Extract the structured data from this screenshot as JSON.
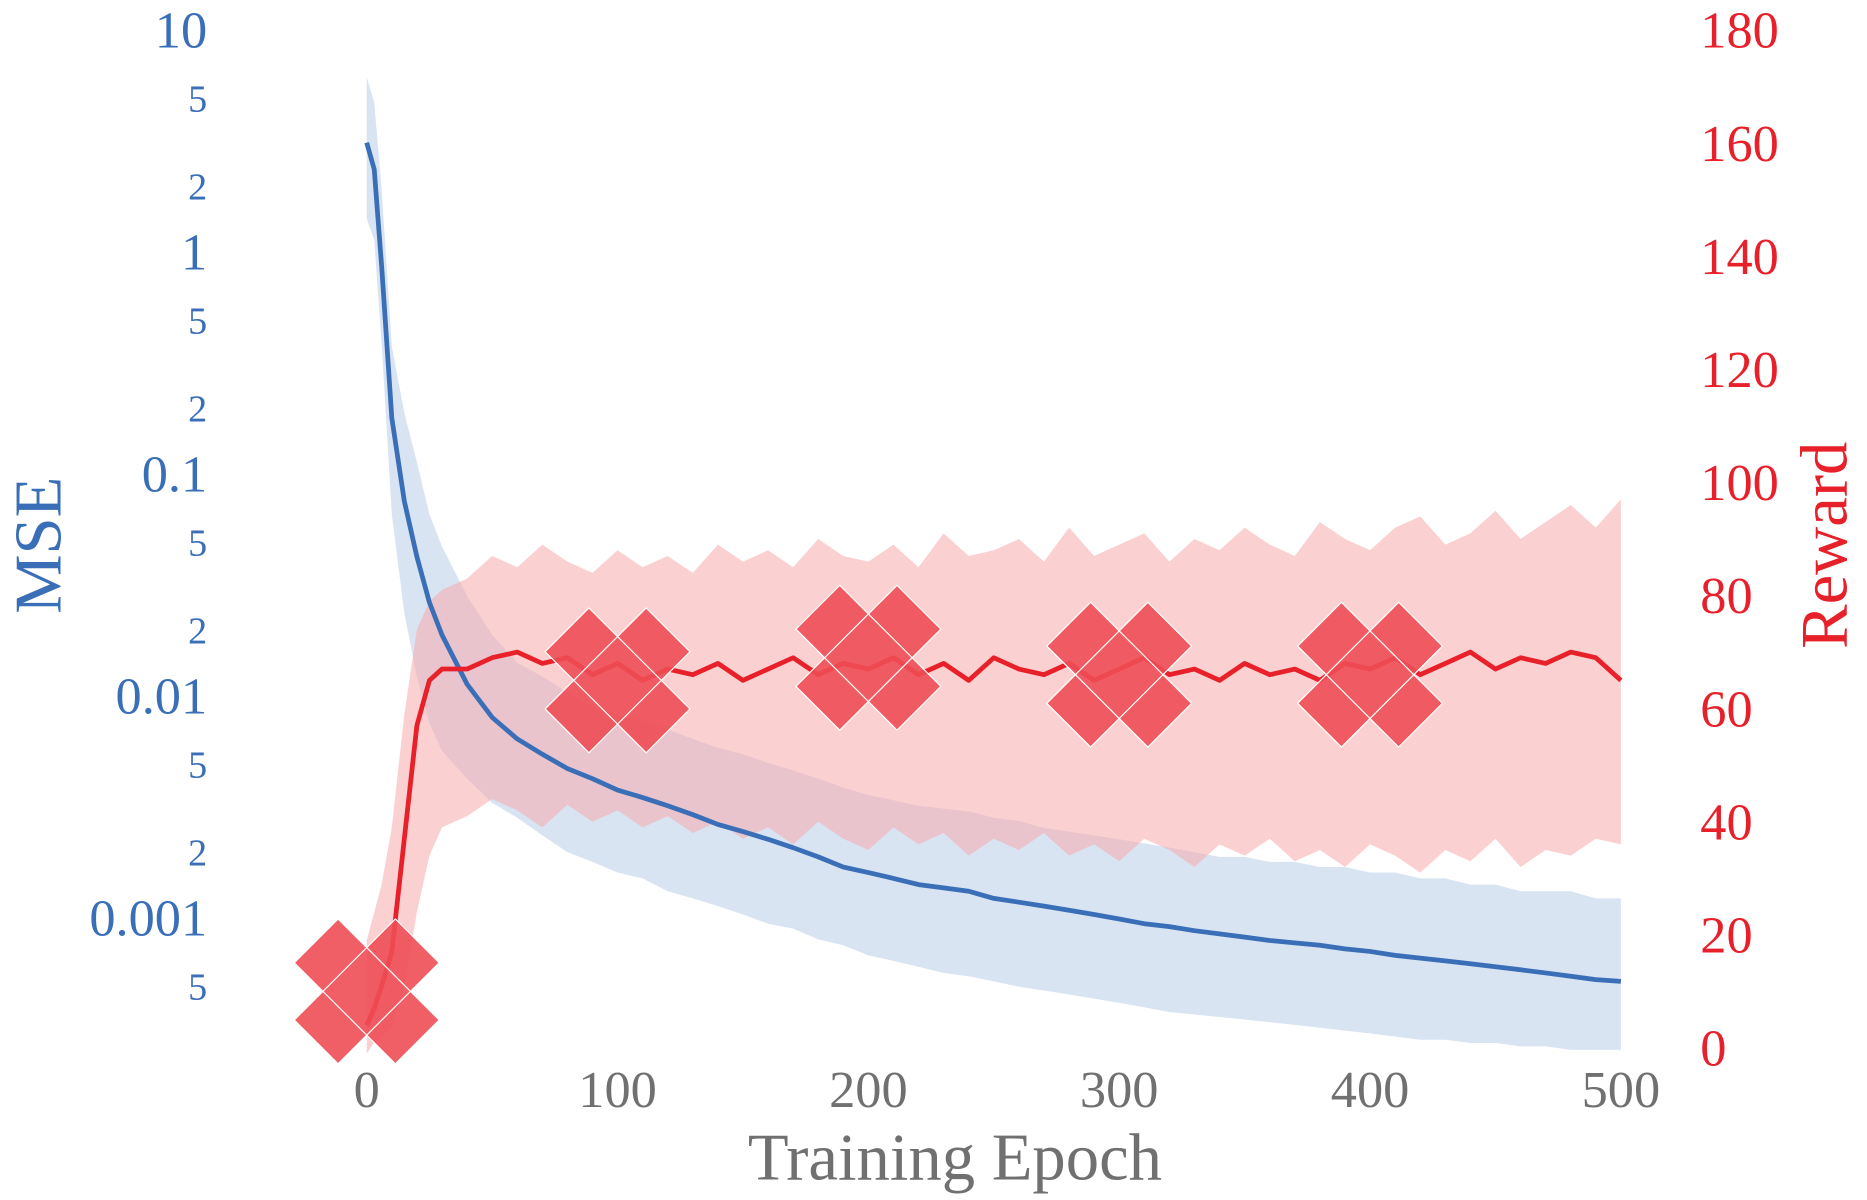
{
  "chart_data": {
    "type": "line",
    "xlabel": "Training Epoch",
    "ylabel": "MSE",
    "y2label": "Reward",
    "xlim": [
      -28,
      516
    ],
    "xticks": [
      0,
      100,
      200,
      300,
      400,
      500
    ],
    "ylim": [
      0.00026,
      10
    ],
    "yscale": "log",
    "yticks": [
      10,
      5,
      2,
      1,
      {
        "value": 0.5,
        "label": "5"
      },
      {
        "value": 0.2,
        "label": "2"
      },
      0.1,
      {
        "value": 0.05,
        "label": "5"
      },
      {
        "value": 0.02,
        "label": "2"
      },
      0.01,
      {
        "value": 0.005,
        "label": "5"
      },
      {
        "value": 0.002,
        "label": "2"
      },
      0.001,
      {
        "value": 0.0005,
        "label": "5"
      }
    ],
    "y2lim": [
      0,
      180
    ],
    "y2ticks": [
      0,
      20,
      40,
      60,
      80,
      100,
      120,
      140,
      160,
      180
    ],
    "ycolor": "#3a6fb8",
    "y2color": "#e8202a",
    "xcolor": "#707070",
    "x": [
      0,
      3,
      6,
      10,
      15,
      20,
      25,
      30,
      40,
      50,
      60,
      70,
      80,
      90,
      100,
      110,
      120,
      130,
      140,
      150,
      160,
      170,
      180,
      190,
      200,
      210,
      220,
      230,
      240,
      250,
      260,
      270,
      280,
      290,
      300,
      310,
      320,
      330,
      340,
      350,
      360,
      370,
      380,
      390,
      400,
      410,
      420,
      430,
      440,
      450,
      460,
      470,
      480,
      490,
      500
    ],
    "series": [
      {
        "axis": "y",
        "color": "#3a6fb8",
        "band_color": "#b9cde9",
        "values": [
          3.3,
          2.5,
          0.9,
          0.19,
          0.08,
          0.045,
          0.028,
          0.02,
          0.012,
          0.0085,
          0.0068,
          0.0058,
          0.005,
          0.0045,
          0.004,
          0.0037,
          0.0034,
          0.0031,
          0.0028,
          0.0026,
          0.0024,
          0.0022,
          0.002,
          0.0018,
          0.0017,
          0.0016,
          0.0015,
          0.00145,
          0.0014,
          0.0013,
          0.00125,
          0.0012,
          0.00115,
          0.0011,
          0.00105,
          0.001,
          0.00097,
          0.00093,
          0.0009,
          0.00087,
          0.00084,
          0.00082,
          0.0008,
          0.00077,
          0.00075,
          0.00072,
          0.0007,
          0.00068,
          0.00066,
          0.00064,
          0.00062,
          0.0006,
          0.00058,
          0.00056,
          0.00055
        ],
        "lower": [
          1.5,
          1.2,
          0.4,
          0.07,
          0.025,
          0.013,
          0.008,
          0.006,
          0.0045,
          0.0035,
          0.003,
          0.0025,
          0.0021,
          0.0019,
          0.0017,
          0.0016,
          0.0014,
          0.0013,
          0.0012,
          0.0011,
          0.001,
          0.00095,
          0.00085,
          0.0008,
          0.00072,
          0.00068,
          0.00064,
          0.0006,
          0.00058,
          0.00055,
          0.00052,
          0.0005,
          0.00048,
          0.00046,
          0.00044,
          0.00042,
          0.0004,
          0.00039,
          0.00038,
          0.00037,
          0.00036,
          0.00035,
          0.00034,
          0.00033,
          0.00032,
          0.00031,
          0.0003,
          0.0003,
          0.00029,
          0.00029,
          0.00028,
          0.00028,
          0.00027,
          0.00027,
          0.00027
        ],
        "upper": [
          6.5,
          5,
          2,
          0.4,
          0.2,
          0.12,
          0.07,
          0.05,
          0.03,
          0.02,
          0.015,
          0.013,
          0.011,
          0.0095,
          0.0088,
          0.0082,
          0.0075,
          0.0068,
          0.0062,
          0.0058,
          0.0053,
          0.0049,
          0.0045,
          0.0041,
          0.0038,
          0.0036,
          0.0034,
          0.0033,
          0.0032,
          0.003,
          0.0029,
          0.0027,
          0.0026,
          0.0025,
          0.0024,
          0.0023,
          0.0022,
          0.0021,
          0.002,
          0.002,
          0.0019,
          0.0019,
          0.0018,
          0.0018,
          0.0017,
          0.0017,
          0.0016,
          0.0016,
          0.0015,
          0.0015,
          0.0014,
          0.0014,
          0.0014,
          0.0013,
          0.0013
        ]
      },
      {
        "axis": "y2",
        "color": "#e8202a",
        "band_color": "#f7a9ac",
        "values": [
          5,
          8,
          12,
          18,
          38,
          58,
          66,
          68,
          68,
          70,
          71,
          69,
          70,
          67,
          69,
          66,
          68,
          67,
          69,
          66,
          68,
          70,
          67,
          69,
          68,
          70,
          67,
          69,
          66,
          70,
          68,
          67,
          69,
          66,
          68,
          70,
          67,
          68,
          66,
          69,
          67,
          68,
          66,
          69,
          68,
          70,
          67,
          69,
          71,
          68,
          70,
          69,
          71,
          70,
          66
        ],
        "lower": [
          0,
          2,
          3,
          5,
          12,
          25,
          35,
          40,
          42,
          45,
          43,
          40,
          44,
          41,
          43,
          40,
          42,
          39,
          41,
          38,
          40,
          37,
          41,
          38,
          36,
          40,
          37,
          39,
          35,
          38,
          36,
          39,
          35,
          37,
          34,
          38,
          36,
          33,
          37,
          35,
          38,
          34,
          36,
          33,
          37,
          35,
          32,
          36,
          34,
          38,
          33,
          36,
          35,
          38,
          37
        ],
        "upper": [
          20,
          25,
          30,
          40,
          60,
          75,
          80,
          82,
          84,
          88,
          86,
          90,
          87,
          85,
          89,
          86,
          88,
          85,
          90,
          87,
          89,
          86,
          91,
          88,
          87,
          90,
          86,
          92,
          88,
          89,
          91,
          87,
          93,
          88,
          90,
          92,
          87,
          91,
          89,
          93,
          90,
          88,
          94,
          91,
          89,
          93,
          95,
          90,
          92,
          96,
          91,
          94,
          97,
          93,
          98
        ]
      },
      {
        "type": "scatter",
        "axis": "y2",
        "marker": "X",
        "color": "#ee4c55",
        "x": [
          0,
          100,
          200,
          300,
          400
        ],
        "values": [
          11,
          66,
          70,
          67,
          67
        ]
      }
    ]
  }
}
